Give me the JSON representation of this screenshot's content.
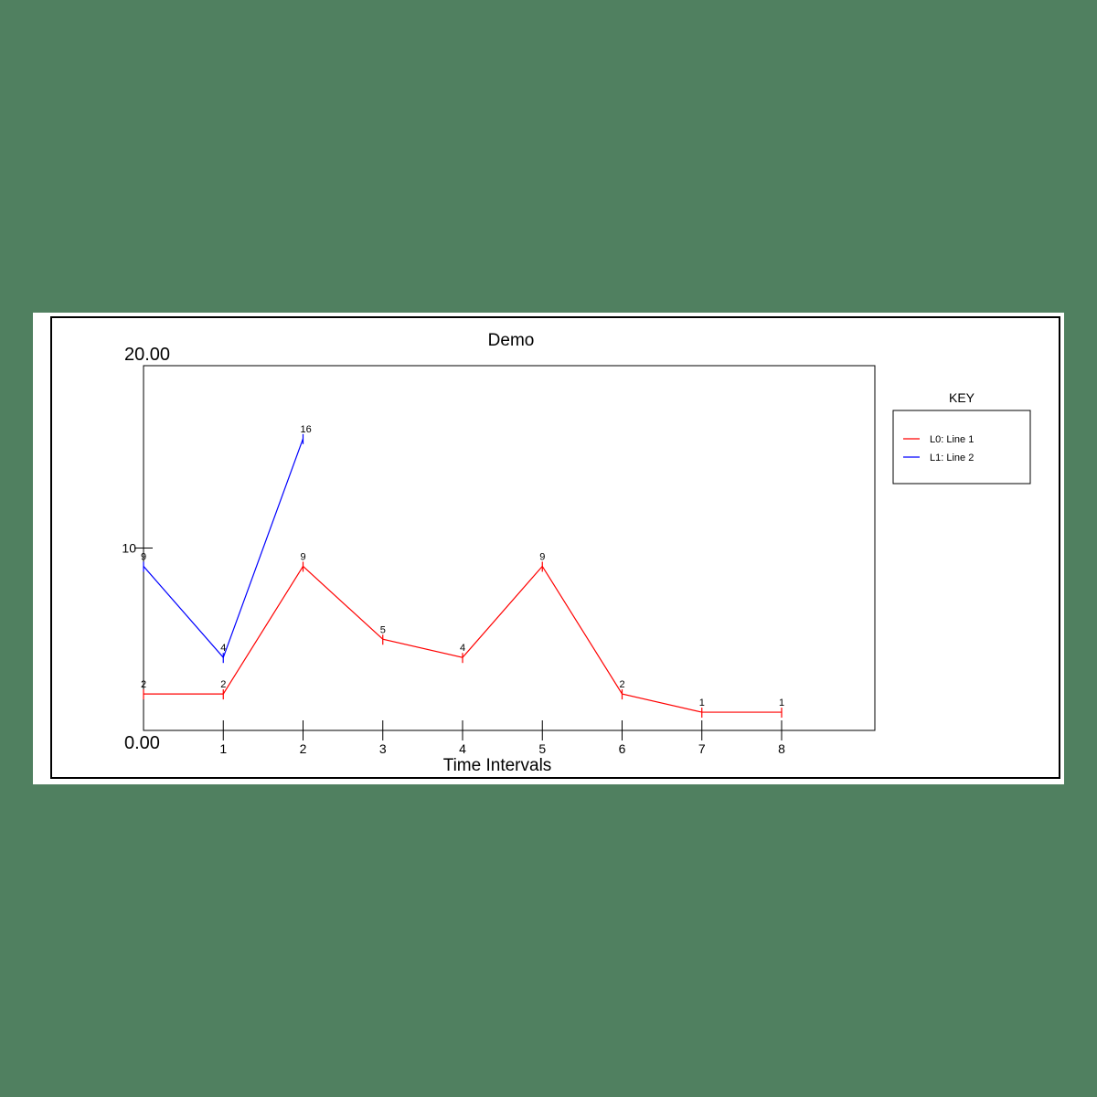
{
  "chart_data": {
    "type": "line",
    "title": "Demo",
    "xlabel": "Time Intervals",
    "ylabel": "",
    "x_ticks": [
      "1",
      "2",
      "3",
      "4",
      "5",
      "6",
      "7",
      "8"
    ],
    "y_max_label": "20.00",
    "y_min_label": "0.00",
    "y_mid_label": "10",
    "ylim": [
      0,
      20
    ],
    "xlim": [
      0,
      9.2
    ],
    "legend_title": "KEY",
    "legend_position": "right",
    "series": [
      {
        "name": "L0: Line 1",
        "color": "#ff0000",
        "x": [
          0,
          1,
          2,
          3,
          4,
          5,
          6,
          7,
          8
        ],
        "values": [
          2,
          2,
          9,
          5,
          4,
          9,
          2,
          1,
          1
        ]
      },
      {
        "name": "L1: Line 2",
        "color": "#0000ff",
        "x": [
          0,
          1,
          2
        ],
        "values": [
          9,
          4,
          16
        ]
      }
    ]
  }
}
